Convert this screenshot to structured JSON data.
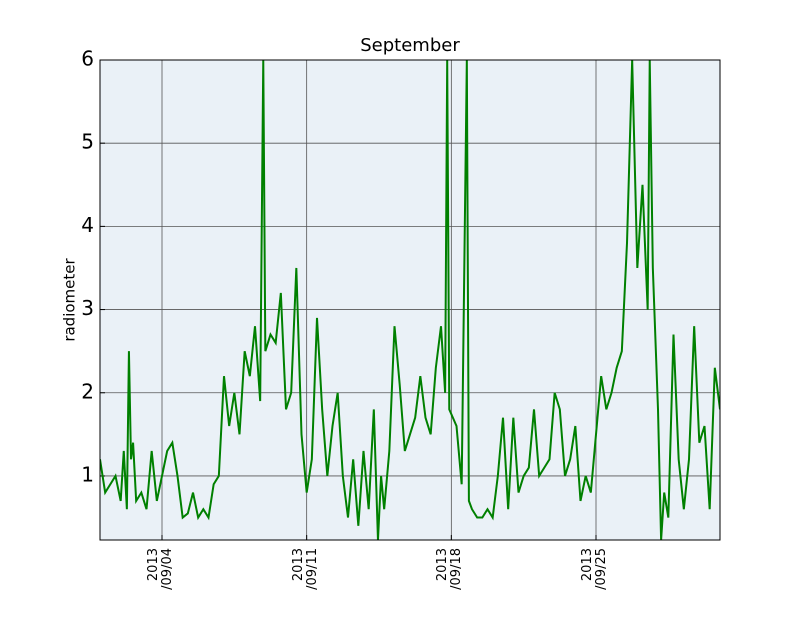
{
  "chart_data": {
    "type": "line",
    "title": "September",
    "y_label": "radiometer",
    "color": "#008000",
    "background": "#eaf1f7",
    "grid": true,
    "xlim": [
      1,
      31
    ],
    "ylim": [
      0.23,
      6
    ],
    "xticks": [
      {
        "value": 4,
        "label": "2013\n/09/04"
      },
      {
        "value": 11,
        "label": "2013\n/09/11"
      },
      {
        "value": 18,
        "label": "2013\n/09/18"
      },
      {
        "value": 25,
        "label": "2013\n/09/25"
      }
    ],
    "yticks": [
      1,
      2,
      3,
      4,
      5,
      6
    ],
    "x": [
      1.0,
      1.25,
      1.5,
      1.75,
      2.0,
      2.15,
      2.3,
      2.4,
      2.5,
      2.6,
      2.75,
      3.0,
      3.25,
      3.5,
      3.75,
      4.0,
      4.25,
      4.5,
      4.75,
      5.0,
      5.25,
      5.5,
      5.75,
      6.0,
      6.25,
      6.5,
      6.75,
      7.0,
      7.25,
      7.5,
      7.75,
      8.0,
      8.25,
      8.5,
      8.75,
      8.9,
      9.0,
      9.25,
      9.5,
      9.75,
      10.0,
      10.25,
      10.5,
      10.75,
      11.0,
      11.25,
      11.5,
      11.75,
      12.0,
      12.25,
      12.5,
      12.75,
      13.0,
      13.25,
      13.5,
      13.75,
      14.0,
      14.25,
      14.45,
      14.6,
      14.75,
      15.0,
      15.25,
      15.5,
      15.75,
      16.0,
      16.25,
      16.5,
      16.75,
      17.0,
      17.25,
      17.5,
      17.7,
      17.8,
      17.9,
      18.25,
      18.5,
      18.75,
      18.85,
      19.0,
      19.25,
      19.5,
      19.75,
      20.0,
      20.25,
      20.5,
      20.75,
      21.0,
      21.25,
      21.5,
      21.75,
      22.0,
      22.25,
      22.5,
      22.75,
      23.0,
      23.25,
      23.5,
      23.75,
      24.0,
      24.25,
      24.5,
      24.75,
      25.0,
      25.25,
      25.5,
      25.75,
      26.0,
      26.25,
      26.5,
      26.75,
      27.0,
      27.25,
      27.5,
      27.6,
      27.75,
      28.0,
      28.15,
      28.3,
      28.5,
      28.75,
      29.0,
      29.25,
      29.5,
      29.75,
      30.0,
      30.25,
      30.5,
      30.75,
      31.0
    ],
    "values": [
      1.2,
      0.8,
      0.9,
      1.0,
      0.7,
      1.3,
      0.6,
      2.5,
      1.2,
      1.4,
      0.7,
      0.8,
      0.6,
      1.3,
      0.7,
      1.0,
      1.3,
      1.4,
      1.0,
      0.5,
      0.55,
      0.8,
      0.5,
      0.6,
      0.5,
      0.9,
      1.0,
      2.2,
      1.6,
      2.0,
      1.5,
      2.5,
      2.2,
      2.8,
      1.9,
      6,
      2.5,
      2.7,
      2.6,
      3.2,
      1.8,
      2.0,
      3.5,
      1.5,
      0.8,
      1.2,
      2.9,
      1.8,
      1.0,
      1.6,
      2.0,
      1.0,
      0.5,
      1.2,
      0.4,
      1.3,
      0.6,
      1.8,
      0.23,
      1.0,
      0.6,
      1.3,
      2.8,
      2.1,
      1.3,
      1.5,
      1.7,
      2.2,
      1.7,
      1.5,
      2.3,
      2.8,
      2.0,
      6,
      1.8,
      1.6,
      0.9,
      6,
      0.7,
      0.6,
      0.5,
      0.5,
      0.6,
      0.5,
      1.0,
      1.7,
      0.6,
      1.7,
      0.8,
      1.0,
      1.1,
      1.8,
      1.0,
      1.1,
      1.2,
      2.0,
      1.8,
      1.0,
      1.2,
      1.6,
      0.7,
      1.0,
      0.8,
      1.5,
      2.2,
      1.8,
      2.0,
      2.3,
      2.5,
      3.8,
      6,
      3.5,
      4.5,
      3.0,
      6,
      3.5,
      1.8,
      0.23,
      0.8,
      0.5,
      2.7,
      1.2,
      0.6,
      1.2,
      2.8,
      1.4,
      1.6,
      0.6,
      2.3,
      1.8
    ]
  }
}
